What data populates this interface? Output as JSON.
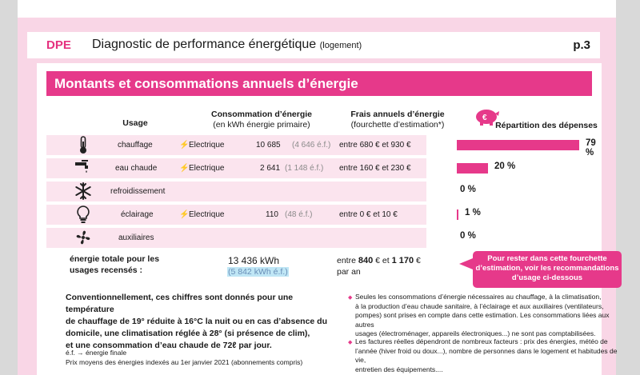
{
  "header": {
    "badge": "DPE",
    "title": "Diagnostic de performance énergétique",
    "subtitle": "(logement)",
    "page": "p.3"
  },
  "section_title": "Montants et consommations annuels d’énergie",
  "columns": {
    "usage": "Usage",
    "conso_title": "Consommation d’énergie",
    "conso_sub": "(en kWh énergie primaire)",
    "frais_title": "Frais annuels d’énergie",
    "frais_sub": "(fourchette d’estimation*)",
    "repartition": "Répartition des dépenses"
  },
  "rows": [
    {
      "icon": "thermometer-icon",
      "usage": "chauffage",
      "energy": "Electrique",
      "kwh": "10 685",
      "ef": "(4 646 é.f.)",
      "frais": "entre 680 € et 930 €",
      "percent": 79,
      "percent_label": "79 %"
    },
    {
      "icon": "faucet-icon",
      "usage": "eau chaude",
      "energy": "Electrique",
      "kwh": "2 641",
      "ef": "(1 148 é.f.)",
      "frais": "entre 160 € et 230 €",
      "percent": 20,
      "percent_label": "20 %"
    },
    {
      "icon": "snowflake-icon",
      "usage": "refroidissement",
      "energy": "",
      "kwh": "",
      "ef": "",
      "frais": "",
      "percent": 0,
      "percent_label": "0 %"
    },
    {
      "icon": "lightbulb-icon",
      "usage": "éclairage",
      "energy": "Electrique",
      "kwh": "110",
      "ef": "(48 é.f.)",
      "frais": "entre 0 € et 10 €",
      "percent": 1,
      "percent_label": "1 %"
    },
    {
      "icon": "fan-icon",
      "usage": "auxiliaires",
      "energy": "",
      "kwh": "",
      "ef": "",
      "frais": "",
      "percent": 0,
      "percent_label": "0 %"
    }
  ],
  "total": {
    "label_line1": "énergie totale pour les",
    "label_line2": "usages recensés :",
    "kwh": "13 436 kWh",
    "ef": "(5 842 kWh é.f.)",
    "frais_prefix": "entre ",
    "frais_low": "840",
    "frais_mid": " € et ",
    "frais_high": "1 170",
    "frais_suffix": " €",
    "frais_line2": "par an"
  },
  "callout": {
    "line1": "Pour rester dans cette fourchette",
    "line2": "d’estimation, voir les recommandations",
    "line3": "d’usage ci-dessous"
  },
  "conventional_note": {
    "line1": "Conventionnellement, ces chiffres sont donnés pour une température",
    "line2": "de chauffage de 19° réduite à 16°C la nuit ou en cas d’absence du",
    "line3": "domicile, une climatisation réglée à 28° (si présence de clim),",
    "line4": "et une consommation d’eau chaude de 72ℓ par jour."
  },
  "footnote1": "é.f. → énergie finale",
  "footnote2": "Prix moyens des énergies indexés au  1er janvier 2021 (abonnements compris)",
  "right_notes": [
    [
      "Seules les consommations d’énergie nécessaires au chauffage, à la climatisation,",
      "à la production d’eau chaude sanitaire, à l’éclairage et aux auxiliaires (ventilateurs,",
      "pompes) sont prises en compte dans cette estimation. Les consommations liées aux autres",
      "usages (électroménager, appareils électroniques...) ne sont pas comptabilisées."
    ],
    [
      "Les factures réelles dépendront de nombreux facteurs : prix des énergies, météo de",
      "l’année (hiver froid ou doux...), nombre de personnes dans le logement et habitudes de vie,",
      "entretien des équipements...."
    ]
  ],
  "colors": {
    "accent": "#e6398a",
    "page_bg": "#f9d6e6",
    "row_bg": "#fbe4ee"
  }
}
